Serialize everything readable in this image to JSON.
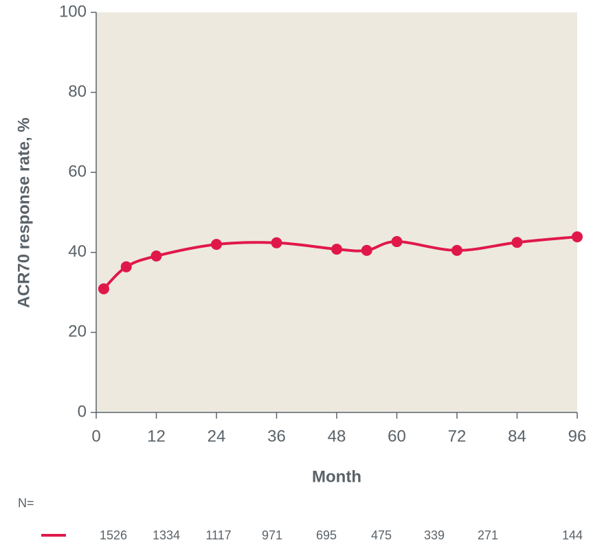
{
  "chart_data": {
    "type": "line",
    "xlabel": "Month",
    "ylabel": "ACR70 response rate, %",
    "x": [
      1.5,
      6,
      12,
      24,
      36,
      48,
      54,
      60,
      72,
      84,
      96
    ],
    "series": [
      {
        "name": "ACR70",
        "color": "#e0184a",
        "values": [
          30.9,
          36.4,
          39.1,
          42.0,
          42.4,
          40.8,
          40.5,
          42.7,
          40.5,
          42.5,
          43.9
        ]
      }
    ],
    "xlim": [
      0,
      96
    ],
    "xticks": [
      0,
      12,
      24,
      36,
      48,
      60,
      72,
      84,
      96
    ],
    "ylim": [
      0,
      100
    ],
    "yticks": [
      0,
      20,
      40,
      60,
      80,
      100
    ],
    "background": "#ede9df",
    "n_at_risk": {
      "label": "N=",
      "values": [
        1526,
        1334,
        1117,
        971,
        695,
        475,
        339,
        271,
        144
      ]
    }
  }
}
